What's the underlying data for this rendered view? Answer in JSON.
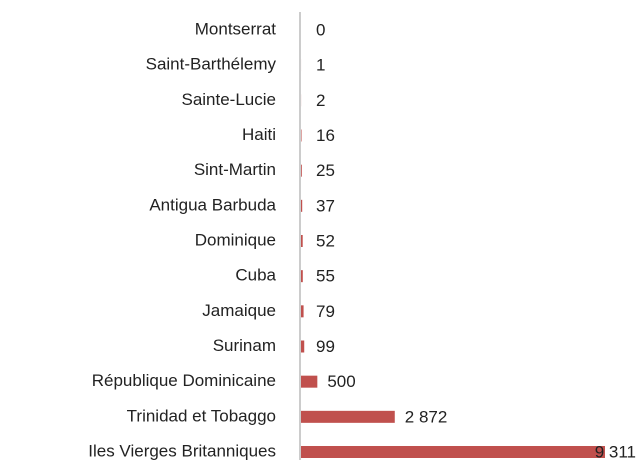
{
  "chart_data": {
    "type": "bar",
    "orientation": "horizontal",
    "color": "#c0504d",
    "categories": [
      "Montserrat",
      "Saint-Barthélemy",
      "Sainte-Lucie",
      "Haiti",
      "Sint-Martin",
      "Antigua Barbuda",
      "Dominique",
      "Cuba",
      "Jamaique",
      "Surinam",
      "République Dominicaine",
      "Trinidad et Tobaggo",
      "Iles Vierges Britanniques"
    ],
    "values": [
      0,
      1,
      2,
      16,
      25,
      37,
      52,
      55,
      79,
      99,
      500,
      2872,
      9311
    ],
    "value_labels": [
      "0",
      "1",
      "2",
      "16",
      "25",
      "37",
      "52",
      "55",
      "79",
      "99",
      "500",
      "2 872",
      "9 311"
    ]
  }
}
